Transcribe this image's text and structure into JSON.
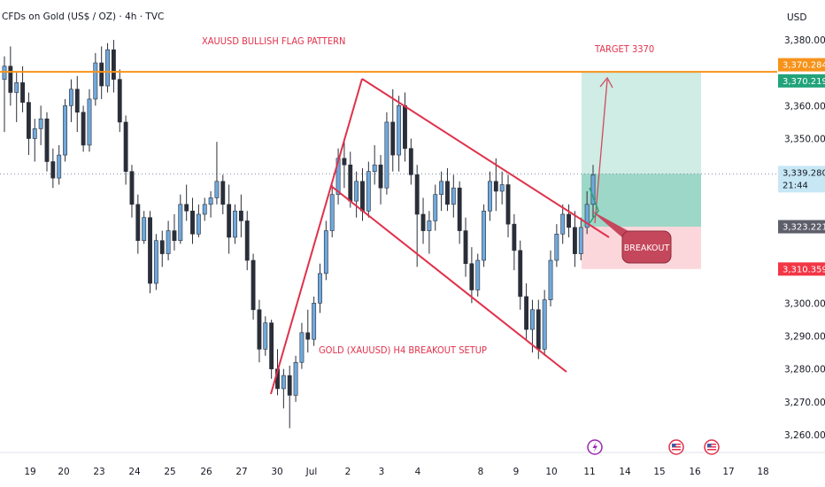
{
  "header": {
    "title": "CFDs on Gold (US$ / OZ) · 4h · TVC"
  },
  "chart_data": {
    "type": "candlestick",
    "currency": "USD",
    "y_ticks": [
      3260,
      3270,
      3280,
      3290,
      3300,
      3310,
      3320,
      3330,
      3340,
      3350,
      3360,
      3370,
      3380
    ],
    "y_tick_labels": [
      "3,260.000",
      "3,270.000",
      "3,280.000",
      "3,290.000",
      "3,300.000",
      "3,310.000",
      "3,320.000",
      "3,330.000",
      "3,340.000",
      "3,350.000",
      "3,360.000",
      "3,370.000",
      "3,380.000"
    ],
    "x_ticks": [
      "19",
      "20",
      "23",
      "24",
      "25",
      "26",
      "27",
      "30",
      "Jul",
      "2",
      "3",
      "4",
      "8",
      "9",
      "10",
      "11",
      "14",
      "15",
      "16",
      "17",
      "18"
    ],
    "annotations": {
      "pattern_title": "XAUUSD BULLISH FLAG PATTERN",
      "setup_title": "GOLD (XAUUSD) H4 BREAKOUT SETUP",
      "target_label": "TARGET 3370",
      "breakout_label": "BREAKOUT"
    },
    "price_tags": [
      {
        "name": "resistance",
        "value": "3,370.284",
        "color": "#f7931a"
      },
      {
        "name": "target",
        "value": "3,370.219",
        "color": "#22a37a"
      },
      {
        "name": "current",
        "value": "3,339.280",
        "sub": "21:44",
        "color": "#c7e7f5"
      },
      {
        "name": "entry",
        "value": "3,323.221",
        "color": "#5d606b"
      },
      {
        "name": "stop",
        "value": "3,310.359",
        "color": "#f23645"
      }
    ],
    "levels": {
      "resistance": 3370.28,
      "target": 3370.22,
      "current": 3339.28,
      "entry": 3323.22,
      "stop": 3310.36
    },
    "event_icons": [
      "lightning-event-icon",
      "us-flag-event-icon",
      "us-flag-event-icon"
    ],
    "candles": [
      [
        3368,
        3375,
        3352,
        3372
      ],
      [
        3372,
        3378,
        3360,
        3364
      ],
      [
        3364,
        3370,
        3355,
        3367
      ],
      [
        3367,
        3372,
        3358,
        3361
      ],
      [
        3361,
        3364,
        3345,
        3350
      ],
      [
        3350,
        3356,
        3343,
        3353
      ],
      [
        3353,
        3360,
        3348,
        3356
      ],
      [
        3356,
        3358,
        3340,
        3343
      ],
      [
        3343,
        3347,
        3335,
        3338
      ],
      [
        3338,
        3348,
        3336,
        3345
      ],
      [
        3345,
        3362,
        3343,
        3360
      ],
      [
        3360,
        3368,
        3355,
        3365
      ],
      [
        3365,
        3369,
        3352,
        3358
      ],
      [
        3358,
        3360,
        3346,
        3348
      ],
      [
        3348,
        3365,
        3346,
        3362
      ],
      [
        3362,
        3376,
        3360,
        3373
      ],
      [
        3373,
        3378,
        3362,
        3366
      ],
      [
        3366,
        3379,
        3364,
        3377
      ],
      [
        3377,
        3380,
        3364,
        3368
      ],
      [
        3368,
        3371,
        3352,
        3355
      ],
      [
        3355,
        3357,
        3336,
        3340
      ],
      [
        3340,
        3342,
        3326,
        3330
      ],
      [
        3330,
        3333,
        3315,
        3319
      ],
      [
        3319,
        3328,
        3318,
        3326
      ],
      [
        3326,
        3328,
        3303,
        3306
      ],
      [
        3306,
        3321,
        3304,
        3319
      ],
      [
        3319,
        3322,
        3311,
        3315
      ],
      [
        3315,
        3325,
        3313,
        3322
      ],
      [
        3322,
        3327,
        3316,
        3319
      ],
      [
        3319,
        3333,
        3318,
        3330
      ],
      [
        3330,
        3336,
        3325,
        3328
      ],
      [
        3328,
        3332,
        3318,
        3321
      ],
      [
        3321,
        3330,
        3320,
        3327
      ],
      [
        3327,
        3332,
        3325,
        3330
      ],
      [
        3330,
        3334,
        3326,
        3332
      ],
      [
        3332,
        3349,
        3330,
        3337
      ],
      [
        3337,
        3339,
        3327,
        3330
      ],
      [
        3330,
        3336,
        3315,
        3320
      ],
      [
        3320,
        3330,
        3318,
        3328
      ],
      [
        3328,
        3333,
        3320,
        3325
      ],
      [
        3325,
        3328,
        3310,
        3313
      ],
      [
        3313,
        3315,
        3295,
        3298
      ],
      [
        3298,
        3301,
        3282,
        3286
      ],
      [
        3286,
        3296,
        3284,
        3294
      ],
      [
        3294,
        3295,
        3277,
        3280
      ],
      [
        3280,
        3286,
        3272,
        3274
      ],
      [
        3274,
        3280,
        3268,
        3278
      ],
      [
        3278,
        3281,
        3262,
        3272
      ],
      [
        3272,
        3284,
        3270,
        3282
      ],
      [
        3282,
        3294,
        3280,
        3291
      ],
      [
        3291,
        3298,
        3285,
        3289
      ],
      [
        3289,
        3302,
        3287,
        3300
      ],
      [
        3300,
        3312,
        3297,
        3309
      ],
      [
        3309,
        3325,
        3307,
        3322
      ],
      [
        3322,
        3336,
        3320,
        3333
      ],
      [
        3333,
        3347,
        3330,
        3344
      ],
      [
        3344,
        3350,
        3335,
        3342
      ],
      [
        3342,
        3346,
        3329,
        3331
      ],
      [
        3331,
        3340,
        3326,
        3337
      ],
      [
        3337,
        3341,
        3325,
        3328
      ],
      [
        3328,
        3343,
        3326,
        3340
      ],
      [
        3340,
        3348,
        3336,
        3342
      ],
      [
        3342,
        3345,
        3330,
        3335
      ],
      [
        3335,
        3358,
        3333,
        3355
      ],
      [
        3355,
        3365,
        3340,
        3345
      ],
      [
        3345,
        3363,
        3340,
        3360
      ],
      [
        3360,
        3364,
        3343,
        3347
      ],
      [
        3347,
        3350,
        3336,
        3339
      ],
      [
        3339,
        3342,
        3311,
        3327
      ],
      [
        3327,
        3332,
        3318,
        3322
      ],
      [
        3322,
        3328,
        3315,
        3325
      ],
      [
        3325,
        3336,
        3322,
        3333
      ],
      [
        3333,
        3340,
        3328,
        3337
      ],
      [
        3337,
        3341,
        3328,
        3330
      ],
      [
        3330,
        3339,
        3326,
        3335
      ],
      [
        3335,
        3337,
        3318,
        3322
      ],
      [
        3322,
        3326,
        3308,
        3312
      ],
      [
        3312,
        3317,
        3300,
        3304
      ],
      [
        3304,
        3315,
        3302,
        3313
      ],
      [
        3313,
        3330,
        3311,
        3328
      ],
      [
        3328,
        3340,
        3325,
        3337
      ],
      [
        3337,
        3344,
        3328,
        3334
      ],
      [
        3334,
        3340,
        3330,
        3336
      ],
      [
        3336,
        3339,
        3320,
        3324
      ],
      [
        3324,
        3327,
        3310,
        3316
      ],
      [
        3316,
        3319,
        3298,
        3302
      ],
      [
        3302,
        3306,
        3289,
        3292
      ],
      [
        3292,
        3301,
        3285,
        3298
      ],
      [
        3298,
        3301,
        3283,
        3286
      ],
      [
        3286,
        3304,
        3284,
        3301
      ],
      [
        3301,
        3316,
        3299,
        3313
      ],
      [
        3313,
        3324,
        3311,
        3321
      ],
      [
        3321,
        3330,
        3318,
        3327
      ],
      [
        3327,
        3330,
        3320,
        3323
      ],
      [
        3323,
        3328,
        3311,
        3315
      ],
      [
        3315,
        3326,
        3313,
        3323
      ],
      [
        3323,
        3334,
        3321,
        3330
      ],
      [
        3330,
        3342,
        3326,
        3339
      ]
    ]
  }
}
